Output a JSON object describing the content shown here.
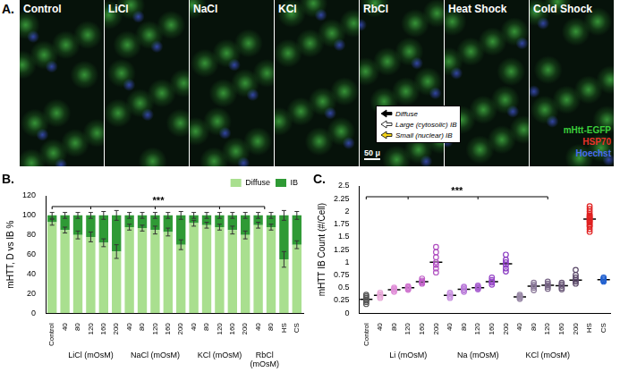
{
  "figure_panel": {
    "label": "A.",
    "images": [
      "Control",
      "LiCl",
      "NaCl",
      "KCl",
      "RbCl",
      "Heat Shock",
      "Cold Shock"
    ],
    "arrow_legend": [
      {
        "label": "Diffuse",
        "color": "#000000"
      },
      {
        "label": "Large (cytosolic) IB",
        "color": "#ffffff"
      },
      {
        "label": "Small (nuclear) IB",
        "color": "#f2d21b"
      }
    ],
    "channels": [
      {
        "label": "mHtt-EGFP",
        "color": "#3ccf3c"
      },
      {
        "label": "HSP70",
        "color": "#e8332a"
      },
      {
        "label": "Hoechst",
        "color": "#4a6cf0"
      }
    ],
    "scale_bar": "50 μ"
  },
  "chart_data": [
    {
      "panel_label": "B.",
      "type": "bar",
      "stacked": true,
      "y_label": "mHTT, D vs IB %",
      "categories": [
        "Control",
        "40",
        "80",
        "120",
        "160",
        "200",
        "40",
        "80",
        "120",
        "160",
        "200",
        "40",
        "80",
        "120",
        "160",
        "200",
        "40",
        "80",
        "HS",
        "CS"
      ],
      "category_groups": [
        null,
        "LiCl (mOsM)",
        "LiCl (mOsM)",
        "LiCl (mOsM)",
        "LiCl (mOsM)",
        "LiCl (mOsM)",
        "NaCl (mOsM)",
        "NaCl (mOsM)",
        "NaCl (mOsM)",
        "NaCl (mOsM)",
        "NaCl (mOsM)",
        "KCl (mOsM)",
        "KCl (mOsM)",
        "KCl (mOsM)",
        "KCl (mOsM)",
        "KCl (mOsM)",
        "RbCl (mOsM)",
        "RbCl (mOsM)",
        null,
        null
      ],
      "series": [
        {
          "name": "Diffuse",
          "color": "#a9df8f",
          "values": [
            93,
            85,
            80,
            78,
            72,
            63,
            88,
            87,
            85,
            83,
            70,
            92,
            90,
            88,
            85,
            80,
            90,
            88,
            55,
            70
          ],
          "errors": [
            3,
            3,
            4,
            5,
            4,
            7,
            3,
            3,
            4,
            4,
            5,
            3,
            3,
            3,
            4,
            4,
            3,
            3,
            8,
            4
          ]
        },
        {
          "name": "IB",
          "color": "#2f9a35",
          "values": [
            7,
            15,
            20,
            22,
            28,
            37,
            12,
            13,
            15,
            17,
            30,
            8,
            10,
            12,
            15,
            20,
            10,
            12,
            45,
            30
          ],
          "errors": [
            3,
            3,
            3,
            3,
            4,
            5,
            3,
            3,
            3,
            3,
            4,
            3,
            3,
            3,
            3,
            3,
            3,
            3,
            5,
            4
          ]
        }
      ],
      "ylim": [
        0,
        120
      ],
      "yticks": [
        0,
        20,
        40,
        60,
        80,
        100,
        120
      ],
      "grid": false,
      "legend": "top-right",
      "significance": "***"
    },
    {
      "panel_label": "C.",
      "type": "scatter",
      "y_label": "mHTT IB Count (#/Cell)",
      "marker": "circle",
      "categories": [
        "Control",
        "40",
        "80",
        "120",
        "160",
        "200",
        "40",
        "80",
        "120",
        "160",
        "200",
        "40",
        "80",
        "120",
        "160",
        "200",
        "HS",
        "CS"
      ],
      "category_groups": [
        null,
        "Li (mOsM)",
        "Li (mOsM)",
        "Li (mOsM)",
        "Li (mOsM)",
        "Li (mOsM)",
        "Na (mOsM)",
        "Na (mOsM)",
        "Na (mOsM)",
        "Na (mOsM)",
        "Na (mOsM)",
        "KCl (mOsM)",
        "KCl (mOsM)",
        "KCl (mOsM)",
        "KCl (mOsM)",
        "KCl (mOsM)",
        null,
        null
      ],
      "points": [
        [
          0.18,
          0.22,
          0.25,
          0.27,
          0.3,
          0.33,
          0.36
        ],
        [
          0.3,
          0.33,
          0.35,
          0.37,
          0.4
        ],
        [
          0.42,
          0.44,
          0.46,
          0.48,
          0.5
        ],
        [
          0.46,
          0.48,
          0.5,
          0.51,
          0.53
        ],
        [
          0.58,
          0.6,
          0.62,
          0.64,
          0.68
        ],
        [
          0.8,
          0.88,
          0.95,
          1.0,
          1.1,
          1.2,
          1.3
        ],
        [
          0.3,
          0.33,
          0.35,
          0.38,
          0.4
        ],
        [
          0.42,
          0.45,
          0.47,
          0.5,
          0.52
        ],
        [
          0.47,
          0.49,
          0.5,
          0.52,
          0.54
        ],
        [
          0.56,
          0.6,
          0.62,
          0.65,
          0.7
        ],
        [
          0.82,
          0.88,
          0.95,
          1.0,
          1.05,
          1.15
        ],
        [
          0.28,
          0.3,
          0.32,
          0.34,
          0.36
        ],
        [
          0.45,
          0.5,
          0.53,
          0.56,
          0.6
        ],
        [
          0.48,
          0.52,
          0.55,
          0.58,
          0.62
        ],
        [
          0.47,
          0.5,
          0.54,
          0.57,
          0.6
        ],
        [
          0.58,
          0.62,
          0.65,
          0.7,
          0.75,
          0.85
        ],
        [
          1.6,
          1.65,
          1.7,
          1.72,
          1.75,
          1.78,
          1.8,
          1.82,
          1.84,
          1.86,
          1.88,
          1.9,
          1.92,
          1.95,
          2.0,
          2.05,
          2.1
        ],
        [
          0.62,
          0.64,
          0.66,
          0.68,
          0.7
        ]
      ],
      "means": [
        0.27,
        0.35,
        0.46,
        0.5,
        0.62,
        1.0,
        0.35,
        0.47,
        0.5,
        0.62,
        0.97,
        0.32,
        0.53,
        0.55,
        0.54,
        0.65,
        1.85,
        0.66
      ],
      "colors": [
        "#555555",
        "#e8a8d8",
        "#e090d8",
        "#d078d0",
        "#c060c8",
        "#b050c0",
        "#c890e0",
        "#b878d8",
        "#a860d0",
        "#9848c8",
        "#8838c0",
        "#9a8aa8",
        "#8a7898",
        "#7a6888",
        "#6a5878",
        "#5a4868",
        "#e02020",
        "#2060d0"
      ],
      "ylim": [
        0,
        2.5
      ],
      "yticks": [
        0,
        0.25,
        0.5,
        0.75,
        1,
        1.25,
        1.5,
        1.75,
        2,
        2.25,
        2.5
      ],
      "grid": false,
      "significance": "***"
    }
  ]
}
